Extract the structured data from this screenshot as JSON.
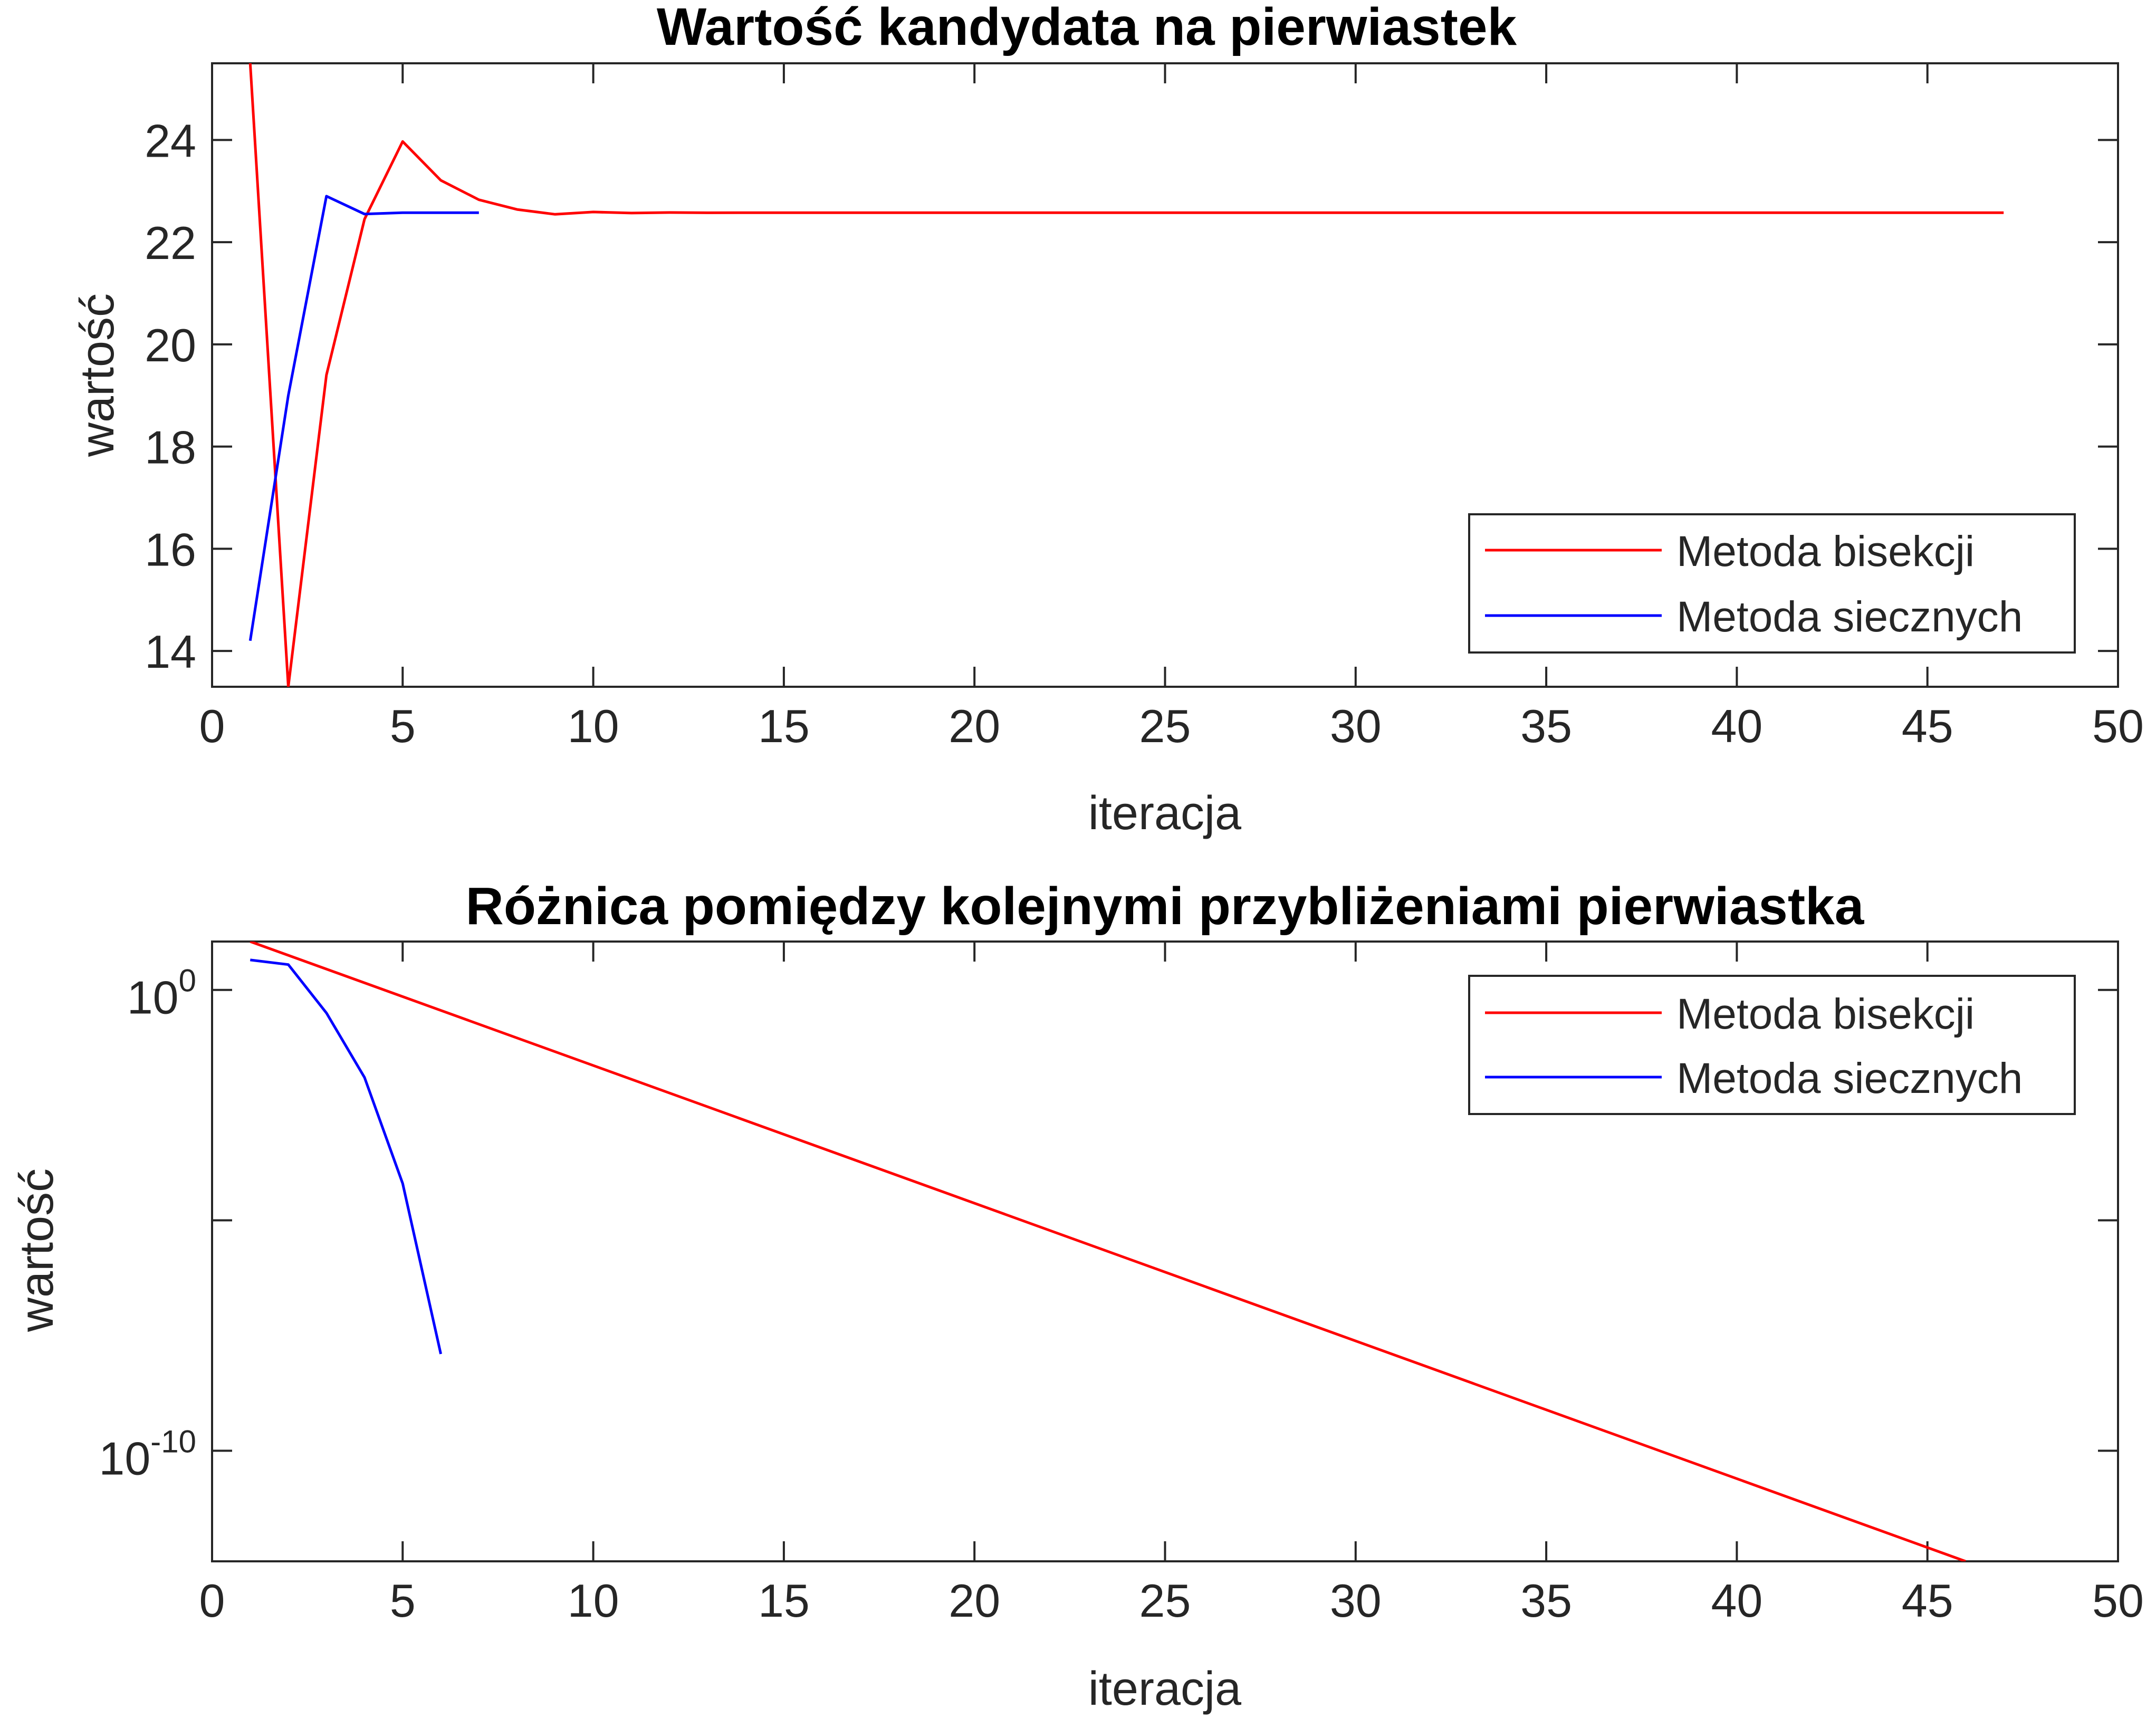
{
  "chart_data": [
    {
      "type": "line",
      "title": "Wartość kandydata na pierwiastek",
      "xlabel": "iteracja",
      "ylabel": "wartość",
      "xlim": [
        0,
        50
      ],
      "ylim": [
        13.3,
        25.5
      ],
      "yscale": "linear",
      "grid": false,
      "legend_position": "bottom-right",
      "xticks": [
        0,
        5,
        10,
        15,
        20,
        25,
        30,
        35,
        40,
        45,
        50
      ],
      "xtick_labels": [
        "0",
        "5",
        "10",
        "15",
        "20",
        "25",
        "30",
        "35",
        "40",
        "45",
        "50"
      ],
      "yticks": [
        14,
        16,
        18,
        20,
        22,
        24
      ],
      "ytick_labels": [
        "14",
        "16",
        "18",
        "20",
        "22",
        "24"
      ],
      "series": [
        {
          "name": "Metoda bisekcji",
          "color": "#ff0000",
          "x": [
            1,
            2,
            3,
            4,
            5,
            6,
            7,
            8,
            9,
            10,
            11,
            12,
            13,
            14,
            15,
            16,
            17,
            18,
            19,
            20,
            21,
            22,
            23,
            24,
            25,
            26,
            27,
            28,
            29,
            30,
            31,
            32,
            33,
            34,
            35,
            36,
            37,
            38,
            39,
            40,
            41,
            42,
            43,
            44,
            45,
            46,
            47
          ],
          "y": [
            25.5,
            13.3,
            19.4,
            22.45,
            23.97,
            23.21,
            22.83,
            22.64,
            22.545,
            22.59,
            22.57,
            22.58,
            22.575,
            22.577,
            22.576,
            22.576,
            22.576,
            22.576,
            22.576,
            22.576,
            22.576,
            22.576,
            22.576,
            22.576,
            22.576,
            22.576,
            22.576,
            22.576,
            22.576,
            22.576,
            22.576,
            22.576,
            22.576,
            22.576,
            22.576,
            22.576,
            22.576,
            22.576,
            22.576,
            22.576,
            22.576,
            22.576,
            22.576,
            22.576,
            22.576,
            22.576,
            22.576
          ]
        },
        {
          "name": "Metoda siecznych",
          "color": "#0000ff",
          "x": [
            1,
            2,
            3,
            4,
            5,
            6,
            7
          ],
          "y": [
            14.2,
            19.0,
            22.9,
            22.55,
            22.577,
            22.576,
            22.576
          ]
        }
      ]
    },
    {
      "type": "line",
      "title": "Różnica pomiędzy kolejnymi przybliżeniami pierwiastka",
      "xlabel": "iteracja",
      "ylabel": "wartość",
      "xlim": [
        0,
        50
      ],
      "ylim_log10": [
        -12.4,
        1.05
      ],
      "yscale": "log",
      "grid": false,
      "legend_position": "top-right",
      "xticks": [
        0,
        5,
        10,
        15,
        20,
        25,
        30,
        35,
        40,
        45,
        50
      ],
      "xtick_labels": [
        "0",
        "5",
        "10",
        "15",
        "20",
        "25",
        "30",
        "35",
        "40",
        "45",
        "50"
      ],
      "yticks_log10": [
        -10,
        -5,
        0
      ],
      "ytick_labels": [
        {
          "base": "10",
          "exp": "-10"
        },
        {
          "base": "",
          "exp": ""
        },
        {
          "base": "10",
          "exp": "0"
        }
      ],
      "series": [
        {
          "name": "Metoda bisekcji",
          "color": "#ff0000",
          "x": [
            1,
            46
          ],
          "log10_y": [
            1.05,
            -12.4
          ]
        },
        {
          "name": "Metoda siecznych",
          "color": "#0000ff",
          "x": [
            1,
            2,
            3,
            4,
            5,
            6
          ],
          "log10_y": [
            0.65,
            0.55,
            -0.5,
            -1.9,
            -4.2,
            -7.9
          ]
        }
      ]
    }
  ]
}
